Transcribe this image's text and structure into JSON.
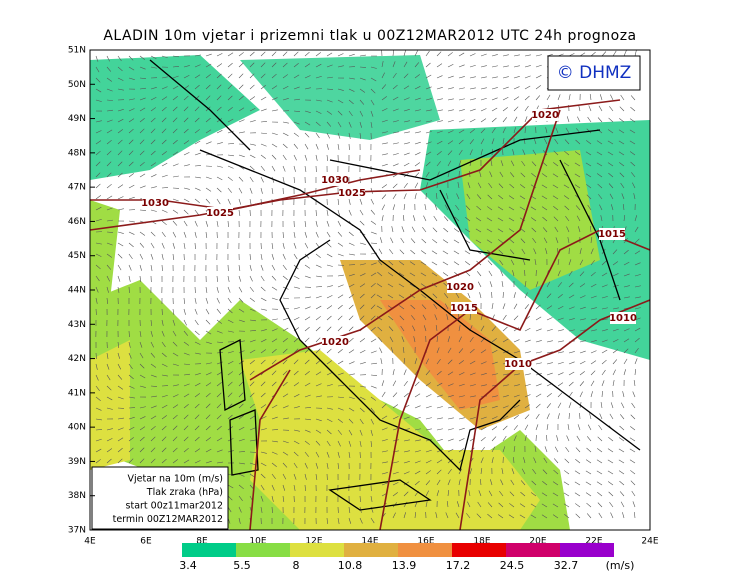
{
  "title": "ALADIN 10m vjetar i prizemni tlak u 00Z12MAR2012 UTC 24h prognoza",
  "logo": "© DHMZ",
  "lat_labels": [
    "51N",
    "50N",
    "49N",
    "48N",
    "47N",
    "46N",
    "45N",
    "44N",
    "43N",
    "42N",
    "41N",
    "40N",
    "39N",
    "38N",
    "37N"
  ],
  "lon_labels": [
    "4E",
    "6E",
    "8E",
    "10E",
    "12E",
    "14E",
    "16E",
    "18E",
    "20E",
    "22E",
    "24E"
  ],
  "legend_box": {
    "lines": [
      "Vjetar na 10m (m/s)",
      "Tlak zraka (hPa)",
      "start 00z11mar2012",
      "termin 00Z12MAR2012"
    ]
  },
  "colorbar": {
    "levels": [
      "3.4",
      "5.5",
      "8",
      "10.8",
      "13.9",
      "17.2",
      "24.5",
      "32.7"
    ],
    "colors": [
      "#00cc88",
      "#88dd44",
      "#dde040",
      "#e0b040",
      "#f09040",
      "#e80000",
      "#d0006a",
      "#9900cc"
    ],
    "unit": "(m/s)"
  },
  "isobar_labels": [
    "1030",
    "1025",
    "1030",
    "1025",
    "1020",
    "1015",
    "1020",
    "1015",
    "1010",
    "1020",
    "1010"
  ]
}
